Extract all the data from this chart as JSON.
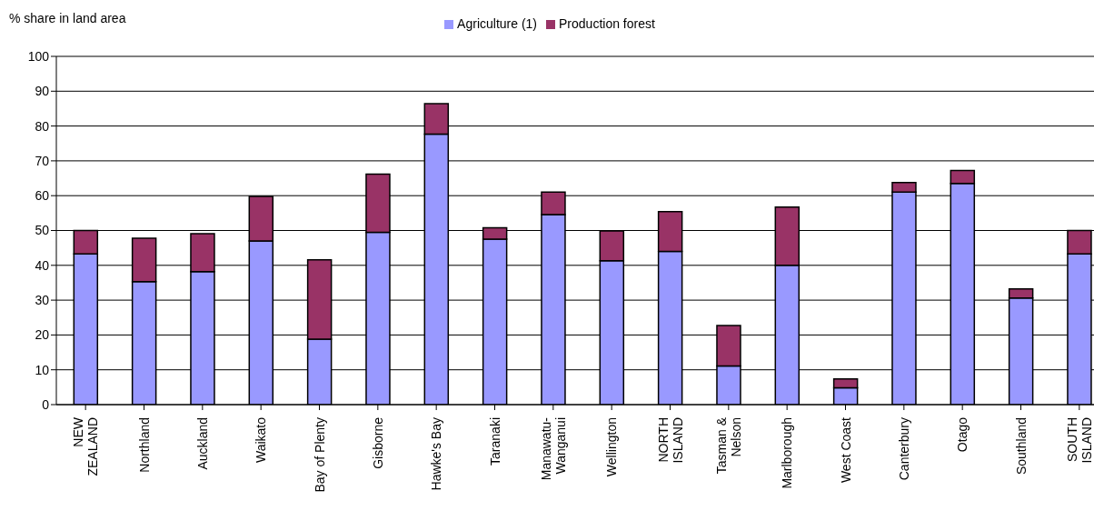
{
  "chart_data": {
    "type": "bar",
    "stacked": true,
    "ylabel": "% share in land area",
    "categories": [
      "NEW\nZEALAND",
      "Northland",
      "Auckland",
      "Waikato",
      "Bay of Plenty",
      "Gisborne",
      "Hawke's Bay",
      "Taranaki",
      "Manawatu-\nWanganui",
      "Wellington",
      "NORTH\nISLAND",
      "Tasman &\nNelson",
      "Marlborough",
      "West Coast",
      "Canterbury",
      "Otago",
      "Southland",
      "SOUTH\nISLAND"
    ],
    "series": [
      {
        "name": "Agriculture (1)",
        "color": "#9999ff",
        "values": [
          43.3,
          35.3,
          38.2,
          47,
          18.8,
          49.5,
          77.7,
          47.5,
          54.6,
          41.3,
          44,
          11.1,
          40,
          4.8,
          61,
          63.5,
          30.6,
          43.3
        ]
      },
      {
        "name": "Production forest",
        "color": "#993366",
        "values": [
          6.7,
          12.5,
          10.9,
          12.8,
          22.8,
          16.7,
          8.7,
          3.3,
          6.4,
          8.6,
          11.4,
          11.6,
          16.7,
          2.6,
          2.8,
          3.7,
          2.6,
          6.7
        ]
      }
    ],
    "ylim": [
      0,
      100
    ],
    "yticks": [
      0,
      10,
      20,
      30,
      40,
      50,
      60,
      70,
      80,
      90,
      100
    ],
    "grid": "y",
    "legend": "top"
  }
}
